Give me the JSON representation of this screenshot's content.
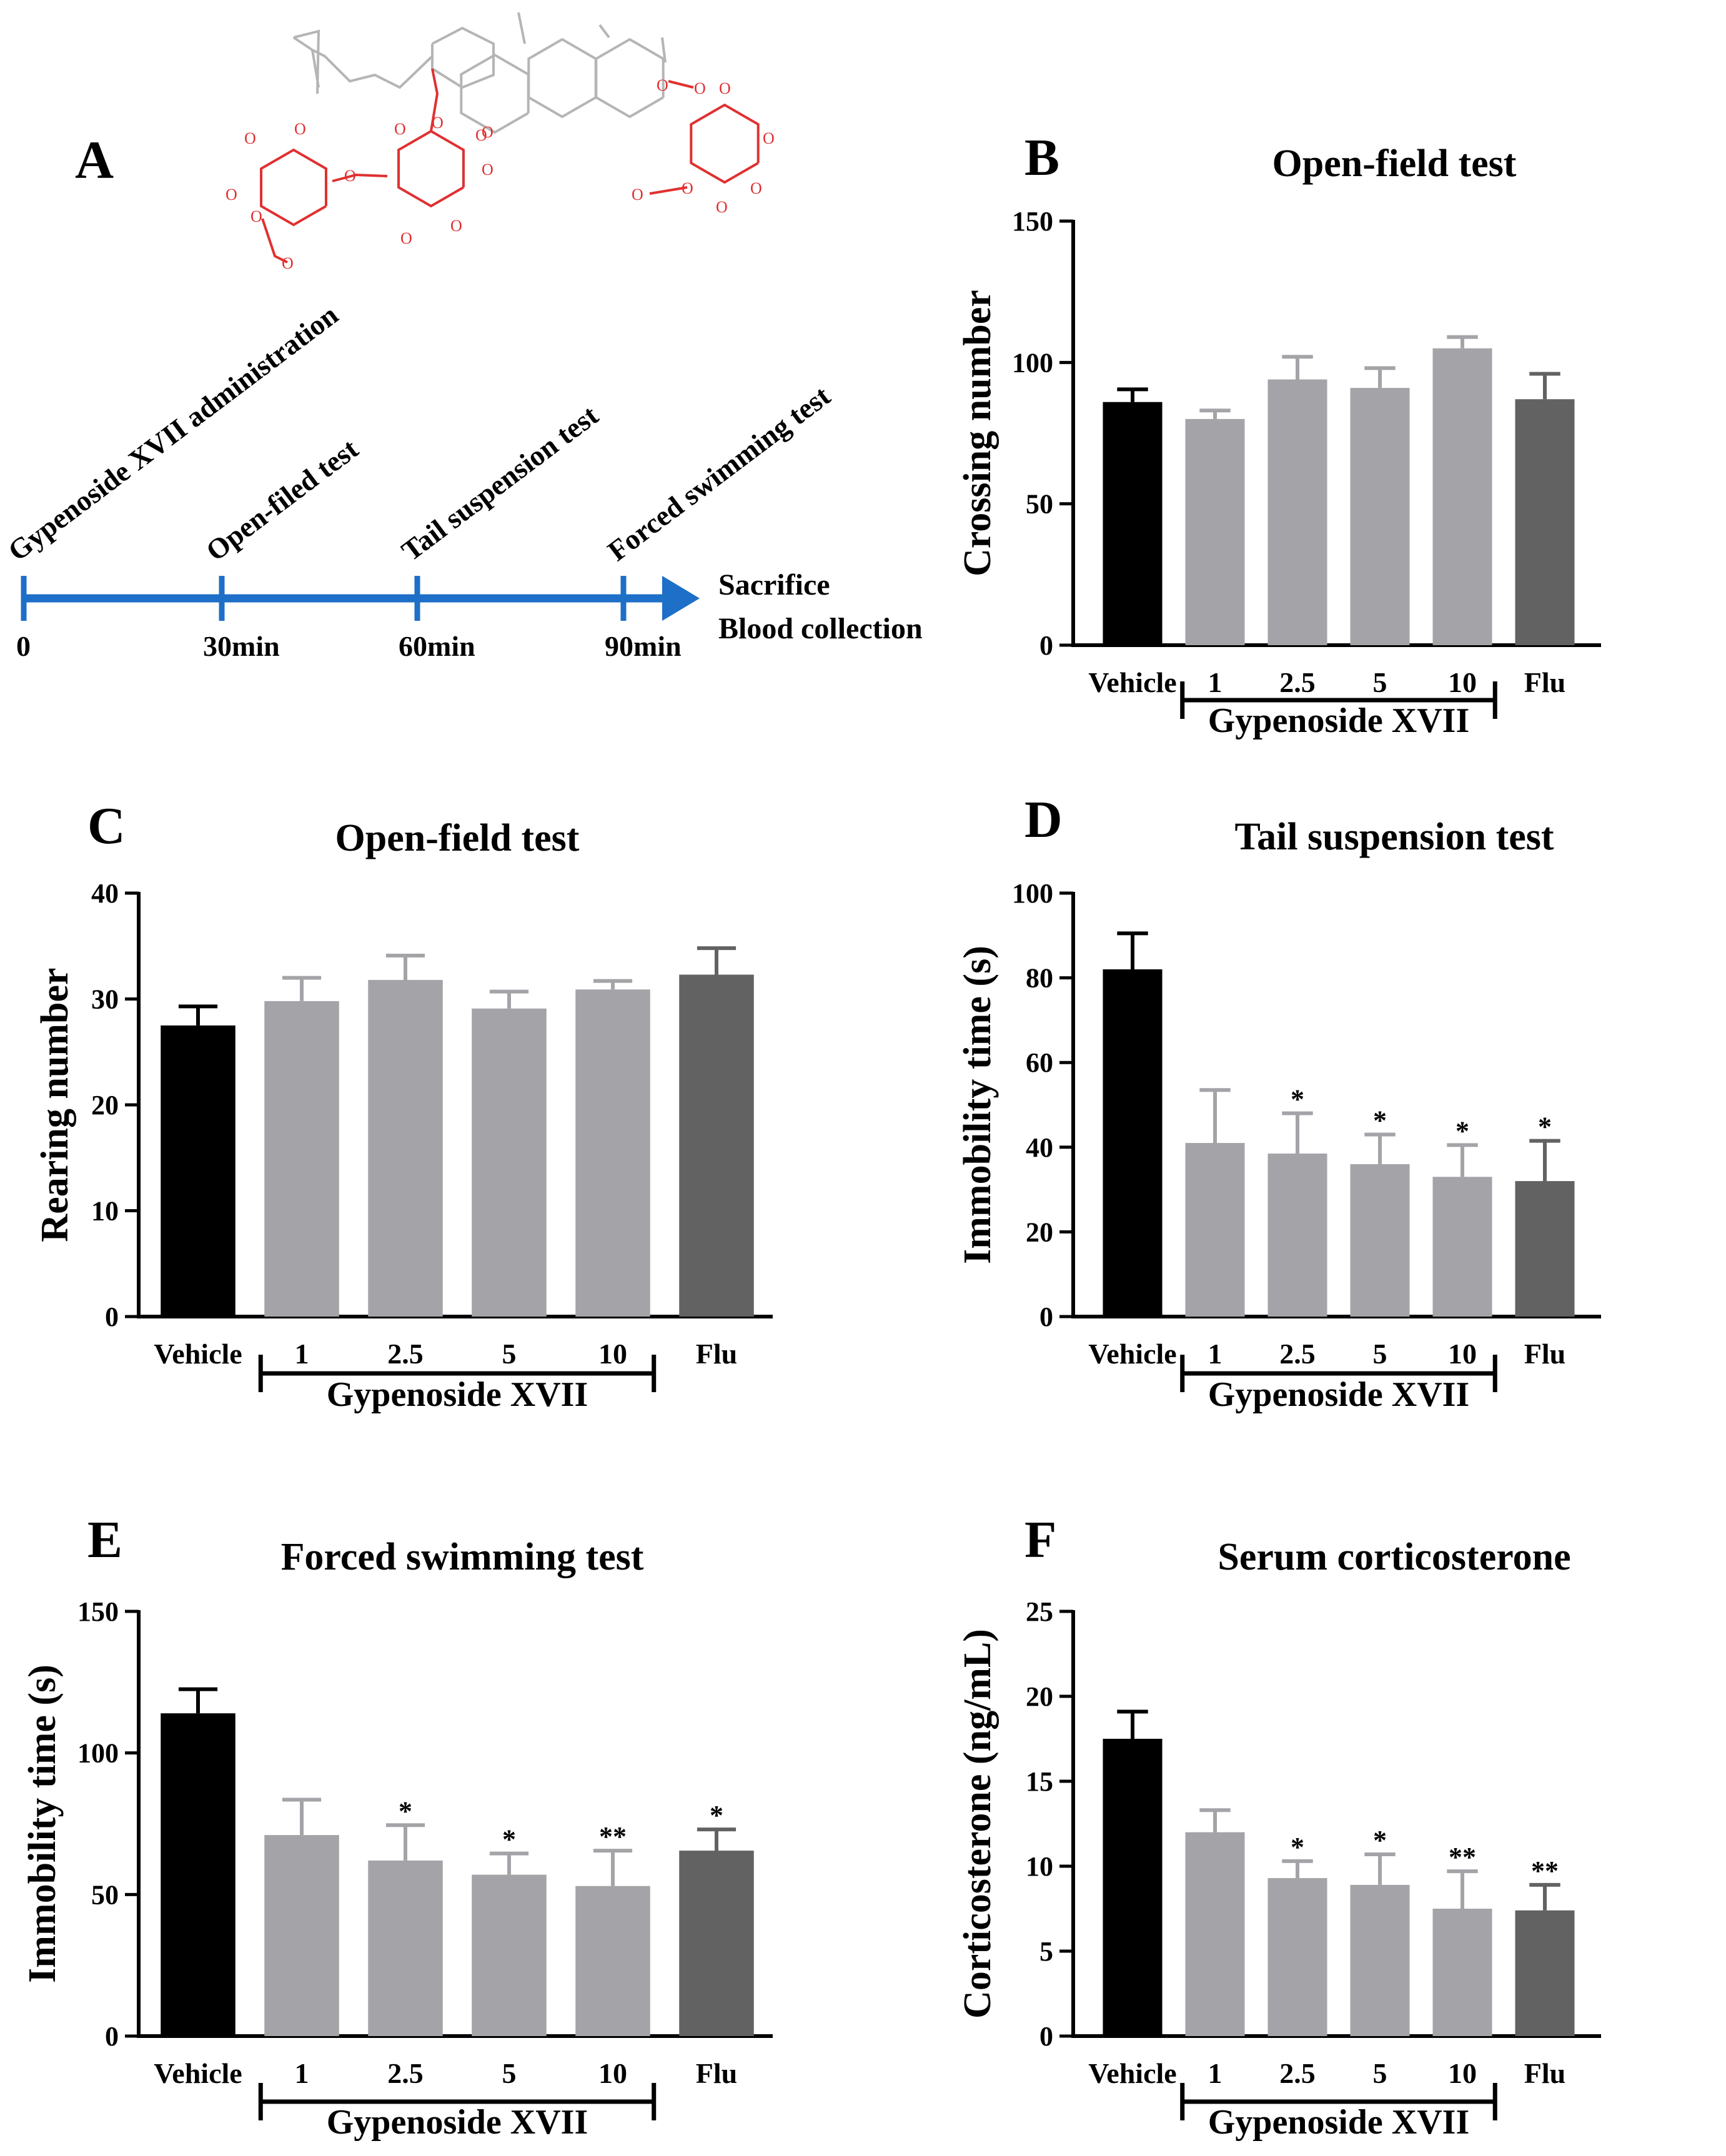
{
  "colors": {
    "vehicle": "#000000",
    "gypenoside": "#a4a4a8",
    "flu": "#626262",
    "timeline": "#1e6fc7",
    "molecule_ring": "#b5b5b5",
    "molecule_oxygen": "#e03030"
  },
  "panel_a": {
    "letter": "A",
    "timeline_events": [
      {
        "time": "0",
        "label": "Gypenoside XVII administration"
      },
      {
        "time": "30min",
        "label": "Open-filed test"
      },
      {
        "time": "60min",
        "label": "Tail suspension test"
      },
      {
        "time": "90min",
        "label": "Forced swimming test"
      }
    ],
    "end_labels": [
      "Sacrifice",
      "Blood collection"
    ],
    "molecule_atom": "O"
  },
  "group_label": "Gypenoside XVII",
  "chart_data": [
    {
      "panel": "B",
      "type": "bar",
      "title": "Open-field test",
      "ylabel": "Crossing number",
      "categories": [
        "Vehicle",
        "1",
        "2.5",
        "5",
        "10",
        "Flu"
      ],
      "values": [
        86,
        80,
        94,
        91,
        105,
        87
      ],
      "errors": [
        4.5,
        3,
        8,
        7,
        4,
        9
      ],
      "significance": [
        "",
        "",
        "",
        "",
        "",
        ""
      ],
      "ylim": [
        0,
        150
      ],
      "yticks": [
        "0",
        "50",
        "100",
        "150"
      ]
    },
    {
      "panel": "C",
      "type": "bar",
      "title": "Open-field test",
      "ylabel": "Rearing number",
      "categories": [
        "Vehicle",
        "1",
        "2.5",
        "5",
        "10",
        "Flu"
      ],
      "values": [
        27.5,
        29.8,
        31.8,
        29.1,
        30.9,
        32.3
      ],
      "errors": [
        1.8,
        2.2,
        2.3,
        1.6,
        0.8,
        2.5
      ],
      "significance": [
        "",
        "",
        "",
        "",
        "",
        ""
      ],
      "ylim": [
        0,
        40
      ],
      "yticks": [
        "0",
        "10",
        "20",
        "30",
        "40"
      ]
    },
    {
      "panel": "D",
      "type": "bar",
      "title": "Tail suspension test",
      "ylabel": "Immobility time (s)",
      "categories": [
        "Vehicle",
        "1",
        "2.5",
        "5",
        "10",
        "Flu"
      ],
      "values": [
        82,
        41,
        38.5,
        36,
        33,
        32
      ],
      "errors": [
        8.5,
        12.5,
        9.5,
        7,
        7.5,
        9.5
      ],
      "significance": [
        "",
        "",
        "*",
        "*",
        "*",
        "*"
      ],
      "ylim": [
        0,
        100
      ],
      "yticks": [
        "0",
        "20",
        "40",
        "60",
        "80",
        "100"
      ]
    },
    {
      "panel": "E",
      "type": "bar",
      "title": "Forced swimming test",
      "ylabel": "Immobility time (s)",
      "categories": [
        "Vehicle",
        "1",
        "2.5",
        "5",
        "10",
        "Flu"
      ],
      "values": [
        114,
        71,
        62,
        57,
        53,
        65.5
      ],
      "errors": [
        8.5,
        12.5,
        12.5,
        7.5,
        12.5,
        7.5
      ],
      "significance": [
        "",
        "",
        "*",
        "*",
        "**",
        "*"
      ],
      "ylim": [
        0,
        150
      ],
      "yticks": [
        "0",
        "50",
        "100",
        "150"
      ]
    },
    {
      "panel": "F",
      "type": "bar",
      "title": "Serum corticosterone",
      "ylabel": "Corticosterone (ng/mL)",
      "categories": [
        "Vehicle",
        "1",
        "2.5",
        "5",
        "10",
        "Flu"
      ],
      "values": [
        17.5,
        12,
        9.3,
        8.9,
        7.5,
        7.4
      ],
      "errors": [
        1.6,
        1.3,
        1,
        1.8,
        2.2,
        1.5
      ],
      "significance": [
        "",
        "",
        "*",
        "*",
        "**",
        "**"
      ],
      "ylim": [
        0,
        25
      ],
      "yticks": [
        "0",
        "5",
        "10",
        "15",
        "20",
        "25"
      ]
    }
  ]
}
